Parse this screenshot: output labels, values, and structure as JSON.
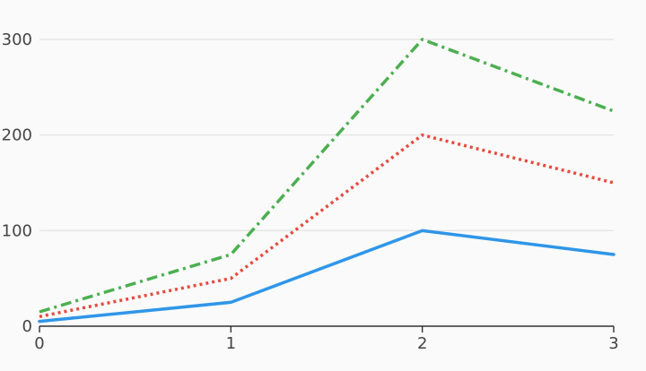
{
  "chart_data": {
    "type": "line",
    "x": [
      0,
      1,
      2,
      3
    ],
    "xticks": [
      "0",
      "1",
      "2",
      "3"
    ],
    "yticks": [
      "0",
      "100",
      "200",
      "300"
    ],
    "ytick_values": [
      0,
      100,
      200,
      300
    ],
    "xlim": [
      0,
      3
    ],
    "ylim": [
      0,
      300
    ],
    "grid": "horizontal",
    "series": [
      {
        "values": [
          5,
          25,
          100,
          75
        ],
        "color": "#2f96e8",
        "style": "solid"
      },
      {
        "values": [
          10,
          50,
          200,
          150
        ],
        "color": "#e84a3f",
        "style": "dotted"
      },
      {
        "values": [
          15,
          75,
          300,
          225
        ],
        "color": "#4caf50",
        "style": "dashdot"
      }
    ],
    "colors": {
      "background": "#fafafa",
      "grid": "#e0e0e0",
      "axis": "#333333",
      "tick_text": "#444444"
    }
  }
}
